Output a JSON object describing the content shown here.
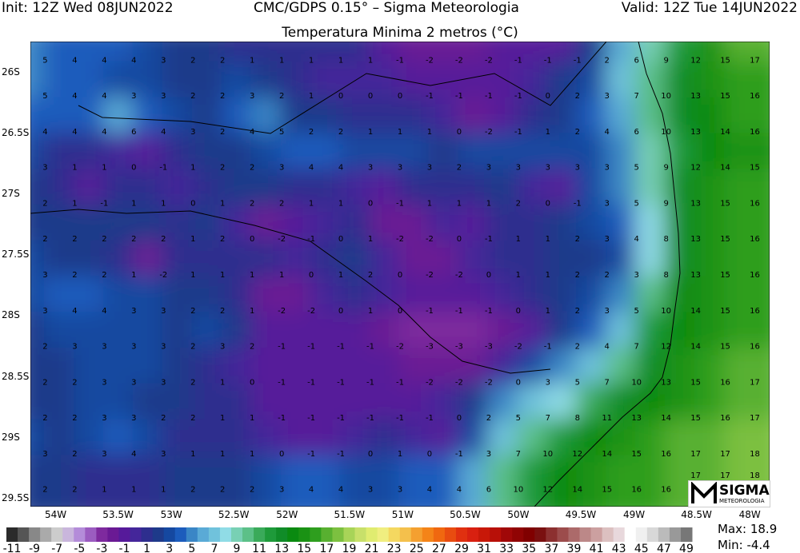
{
  "header": {
    "init": "Init: 12Z Wed 08JUN2022",
    "model": "CMC/GDPS 0.15° – Sigma Meteorologia",
    "valid": "Valid: 12Z Tue 14JUN2022"
  },
  "title": "Temperatura Minima 2 metros (°C)",
  "axes": {
    "lon_ticks": [
      "54W",
      "53.5W",
      "53W",
      "52.5W",
      "52W",
      "51.5W",
      "51W",
      "50.5W",
      "50W",
      "49.5W",
      "49W",
      "48.5W",
      "48W"
    ],
    "lat_ticks": [
      "26S",
      "26.5S",
      "27S",
      "27.5S",
      "28S",
      "28.5S",
      "29S",
      "29.5S"
    ]
  },
  "field": {
    "unit": "°C",
    "values": [
      [
        5,
        4,
        4,
        4,
        3,
        2,
        2,
        1,
        1,
        1,
        1,
        1,
        -1,
        -2,
        -2,
        -2,
        -1,
        -1,
        -1,
        2,
        6,
        9,
        12,
        15,
        17
      ],
      [
        5,
        4,
        4,
        3,
        3,
        2,
        2,
        3,
        2,
        1,
        0,
        0,
        0,
        -1,
        -1,
        -1,
        -1,
        0,
        2,
        3,
        7,
        10,
        13,
        15,
        16
      ],
      [
        4,
        4,
        4,
        6,
        4,
        3,
        2,
        4,
        5,
        2,
        2,
        1,
        1,
        1,
        0,
        -2,
        -1,
        1,
        2,
        4,
        6,
        10,
        13,
        14,
        16
      ],
      [
        3,
        1,
        1,
        0,
        -1,
        1,
        2,
        2,
        3,
        4,
        4,
        3,
        3,
        3,
        2,
        3,
        3,
        3,
        3,
        3,
        5,
        9,
        12,
        14,
        15
      ],
      [
        2,
        1,
        -1,
        1,
        1,
        0,
        1,
        2,
        2,
        1,
        1,
        0,
        -1,
        1,
        1,
        1,
        2,
        0,
        -1,
        3,
        5,
        9,
        13,
        15,
        16
      ],
      [
        2,
        2,
        2,
        2,
        2,
        1,
        2,
        0,
        -2,
        -1,
        0,
        1,
        -2,
        -2,
        0,
        -1,
        1,
        1,
        2,
        3,
        4,
        8,
        13,
        15,
        16
      ],
      [
        3,
        2,
        2,
        1,
        -2,
        1,
        1,
        1,
        1,
        0,
        1,
        2,
        0,
        -2,
        -2,
        0,
        1,
        1,
        2,
        2,
        3,
        8,
        13,
        15,
        16
      ],
      [
        3,
        4,
        4,
        3,
        3,
        2,
        2,
        1,
        -2,
        -2,
        0,
        1,
        0,
        -1,
        -1,
        -1,
        0,
        1,
        2,
        3,
        5,
        10,
        14,
        15,
        16
      ],
      [
        2,
        3,
        3,
        3,
        3,
        2,
        3,
        2,
        -1,
        -1,
        -1,
        -1,
        -2,
        -3,
        -3,
        -3,
        -2,
        -1,
        2,
        4,
        7,
        12,
        14,
        15,
        16
      ],
      [
        2,
        2,
        3,
        3,
        3,
        2,
        1,
        0,
        -1,
        -1,
        -1,
        -1,
        -1,
        -2,
        -2,
        -2,
        0,
        3,
        5,
        7,
        10,
        13,
        15,
        16,
        17
      ],
      [
        2,
        2,
        3,
        3,
        2,
        2,
        1,
        1,
        -1,
        -1,
        -1,
        -1,
        -1,
        -1,
        0,
        2,
        5,
        7,
        8,
        11,
        13,
        14,
        15,
        16,
        17
      ],
      [
        3,
        2,
        3,
        4,
        3,
        1,
        1,
        1,
        0,
        -1,
        -1,
        0,
        1,
        0,
        -1,
        3,
        7,
        10,
        12,
        14,
        15,
        16,
        17,
        17,
        18
      ],
      [
        2,
        2,
        1,
        1,
        1,
        2,
        2,
        2,
        3,
        4,
        4,
        3,
        3,
        4,
        4,
        6,
        10,
        12,
        14,
        15,
        16,
        16,
        17,
        17,
        18
      ]
    ]
  },
  "colorbar": {
    "min": -11,
    "max": 49,
    "labels": [
      "-11",
      "-9",
      "-7",
      "-5",
      "-3",
      "-1",
      "1",
      "3",
      "5",
      "7",
      "9",
      "11",
      "13",
      "15",
      "17",
      "19",
      "21",
      "23",
      "25",
      "27",
      "29",
      "31",
      "33",
      "35",
      "37",
      "39",
      "41",
      "43",
      "45",
      "47",
      "49"
    ],
    "colors": [
      "#2b2b2b",
      "#555555",
      "#888888",
      "#aaaaaa",
      "#cccccc",
      "#c9b6dc",
      "#b48cd9",
      "#9b5cc0",
      "#7e2a9e",
      "#6a1a94",
      "#561a9a",
      "#44269a",
      "#2e2e8e",
      "#1e3a8a",
      "#1548a0",
      "#1c5cbc",
      "#3a86c6",
      "#5aaad6",
      "#70c2dc",
      "#90dce6",
      "#78d0b4",
      "#5cc088",
      "#3aaa5a",
      "#1e9a3a",
      "#108c28",
      "#0a8a10",
      "#1a9214",
      "#2e9e1e",
      "#58b030",
      "#7cc040",
      "#a8d458",
      "#c8e06a",
      "#e0ec70",
      "#f0ee80",
      "#f4d860",
      "#f4c04c",
      "#f4a030",
      "#f48418",
      "#f06810",
      "#e84c10",
      "#e03010",
      "#d82010",
      "#c81808",
      "#b81008",
      "#a00808",
      "#900404",
      "#800000",
      "#7a1010",
      "#8c3030",
      "#9c4c4c",
      "#ac6a6a",
      "#bc8888",
      "#cca0a0",
      "#dcc0c0",
      "#e8d8dc",
      "#ffffff",
      "#f0f0f0",
      "#d8d8d8",
      "#bbbbbb",
      "#999999",
      "#777777"
    ]
  },
  "stats": {
    "max": "Max:  18.9",
    "min": "Min:  -4.4"
  },
  "logo": {
    "name": "SIGMA",
    "sub": "METEOROLOGIA"
  }
}
